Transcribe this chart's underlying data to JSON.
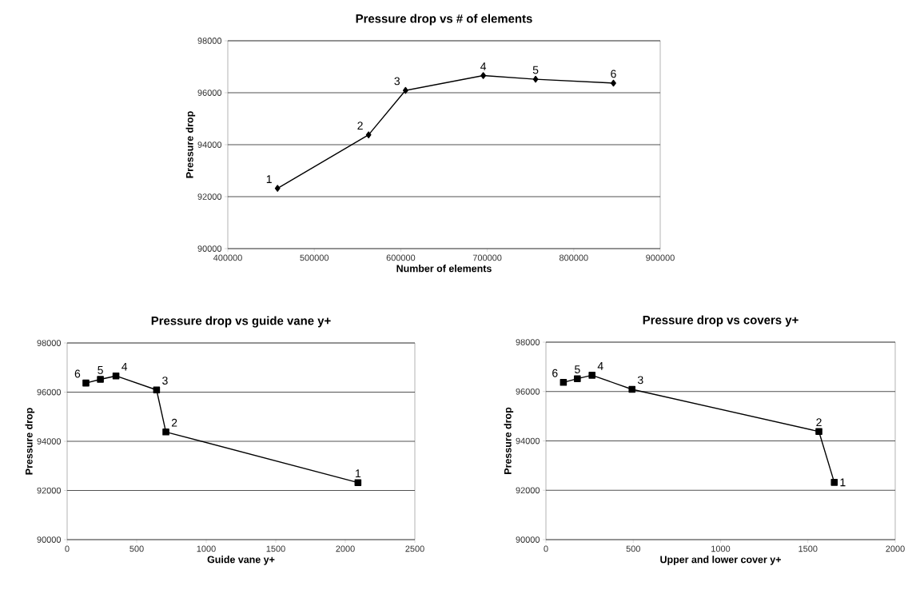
{
  "chart_data": [
    {
      "type": "line",
      "title": "Pressure drop vs # of elements",
      "xlabel": "Number of elements",
      "ylabel": "Pressure drop",
      "color": "#000000",
      "marker": "diamond",
      "grid": "y",
      "x": [
        457500,
        562800,
        605500,
        695400,
        755900,
        845900
      ],
      "values": [
        92320,
        94380,
        96090,
        96660,
        96520,
        96370
      ],
      "xlim": [
        400000,
        900000
      ],
      "xticks": [
        400000,
        500000,
        600000,
        700000,
        800000,
        900000
      ],
      "ylim": [
        90000,
        98000
      ],
      "yticks": [
        90000,
        92000,
        94000,
        96000,
        98000
      ],
      "annotations": [
        {
          "text": "1",
          "x": 457500,
          "y": 92320
        },
        {
          "text": "2",
          "x": 562800,
          "y": 94380
        },
        {
          "text": "3",
          "x": 605500,
          "y": 96090
        },
        {
          "text": "4",
          "x": 695400,
          "y": 96660
        },
        {
          "text": "5",
          "x": 755900,
          "y": 96520
        },
        {
          "text": "6",
          "x": 845900,
          "y": 96370
        }
      ]
    },
    {
      "type": "line",
      "title": "Pressure drop vs guide vane y+",
      "xlabel": "Guide vane y+",
      "ylabel": "Pressure drop",
      "color": "#000000",
      "marker": "square",
      "grid": "y",
      "x": [
        2091,
        710,
        643,
        351,
        239,
        135
      ],
      "values": [
        92320,
        94380,
        96090,
        96660,
        96520,
        96370
      ],
      "xlim": [
        0,
        2500
      ],
      "xticks": [
        0,
        500,
        1000,
        1500,
        2000,
        2500
      ],
      "ylim": [
        90000,
        98000
      ],
      "yticks": [
        90000,
        92000,
        94000,
        96000,
        98000
      ],
      "annotations": [
        {
          "text": "1",
          "x": 2091,
          "y": 92320
        },
        {
          "text": "2",
          "x": 710,
          "y": 94380
        },
        {
          "text": "3",
          "x": 643,
          "y": 96090
        },
        {
          "text": "4",
          "x": 351,
          "y": 96660
        },
        {
          "text": "5",
          "x": 239,
          "y": 96520
        },
        {
          "text": "6",
          "x": 135,
          "y": 96370
        }
      ]
    },
    {
      "type": "line",
      "title": "Pressure drop vs covers y+",
      "xlabel": "Upper and lower cover y+",
      "ylabel": "Pressure drop",
      "color": "#000000",
      "marker": "square",
      "grid": "y",
      "x": [
        1651,
        1563,
        493,
        264,
        180,
        100
      ],
      "values": [
        92320,
        94380,
        96090,
        96660,
        96520,
        96370
      ],
      "xlim": [
        0,
        2000
      ],
      "xticks": [
        0,
        500,
        1000,
        1500,
        2000
      ],
      "ylim": [
        90000,
        98000
      ],
      "yticks": [
        90000,
        92000,
        94000,
        96000,
        98000
      ],
      "annotations": [
        {
          "text": "1",
          "x": 1651,
          "y": 92320
        },
        {
          "text": "2",
          "x": 1563,
          "y": 94380
        },
        {
          "text": "3",
          "x": 493,
          "y": 96090
        },
        {
          "text": "4",
          "x": 264,
          "y": 96660
        },
        {
          "text": "5",
          "x": 180,
          "y": 96520
        },
        {
          "text": "6",
          "x": 100,
          "y": 96370
        }
      ]
    }
  ]
}
